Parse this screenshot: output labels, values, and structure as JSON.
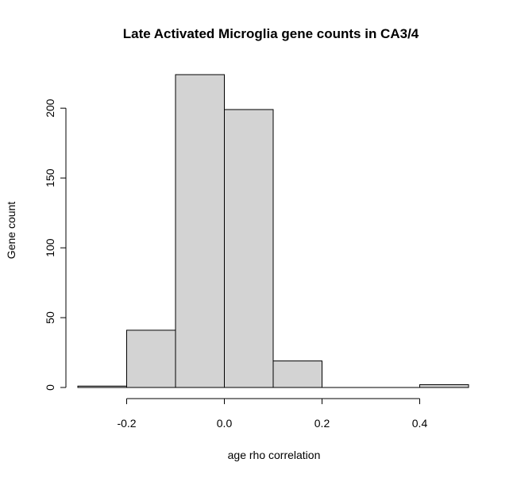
{
  "chart_data": {
    "type": "bar",
    "title": "Late Activated Microglia gene counts in CA3/4",
    "xlabel": "age rho correlation",
    "ylabel": "Gene count",
    "bins": [
      {
        "from": -0.3,
        "to": -0.2,
        "count": 1
      },
      {
        "from": -0.2,
        "to": -0.1,
        "count": 41
      },
      {
        "from": -0.1,
        "to": 0.0,
        "count": 224
      },
      {
        "from": 0.0,
        "to": 0.1,
        "count": 199
      },
      {
        "from": 0.1,
        "to": 0.2,
        "count": 19
      },
      {
        "from": 0.2,
        "to": 0.3,
        "count": 0
      },
      {
        "from": 0.3,
        "to": 0.4,
        "count": 0
      },
      {
        "from": 0.4,
        "to": 0.5,
        "count": 2
      }
    ],
    "xlim": [
      -0.3,
      0.5
    ],
    "ylim": [
      0,
      224
    ],
    "x_ticks": [
      {
        "value": -0.2,
        "label": "-0.2"
      },
      {
        "value": 0.0,
        "label": "0.0"
      },
      {
        "value": 0.2,
        "label": "0.2"
      },
      {
        "value": 0.4,
        "label": "0.4"
      }
    ],
    "y_ticks": [
      {
        "value": 0,
        "label": "0"
      },
      {
        "value": 50,
        "label": "50"
      },
      {
        "value": 100,
        "label": "100"
      },
      {
        "value": 150,
        "label": "150"
      },
      {
        "value": 200,
        "label": "200"
      }
    ],
    "bar_color": "#d3d3d3",
    "grid": false
  }
}
